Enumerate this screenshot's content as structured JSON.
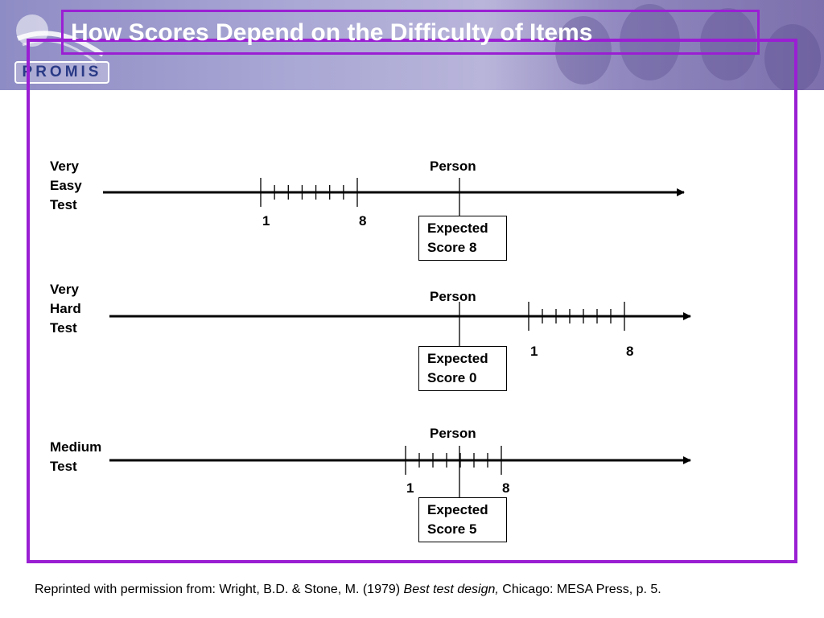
{
  "header": {
    "logo_text": "PROMIS",
    "title": "How Scores Depend on the Difficulty of Items"
  },
  "rows": [
    {
      "label": [
        "Very",
        "Easy",
        "Test"
      ],
      "person_label": "Person",
      "item_low": "1",
      "item_high": "8",
      "box": [
        "Expected",
        "Score 8"
      ]
    },
    {
      "label": [
        "Very",
        "Hard",
        "Test"
      ],
      "person_label": "Person",
      "item_low": "1",
      "item_high": "8",
      "box": [
        "Expected",
        "Score 0"
      ]
    },
    {
      "label": [
        "Medium",
        "Test"
      ],
      "person_label": "Person",
      "item_low": "1",
      "item_high": "8",
      "box": [
        "Expected",
        "Score 5"
      ]
    }
  ],
  "citation": {
    "prefix": "Reprinted with permission from:  Wright, B.D. & Stone, M. (1979) ",
    "title": "Best test design,",
    "suffix": " Chicago: MESA Press, p. 5."
  },
  "colors": {
    "frame": "#9a1fd3",
    "banner": "#a9a7d4",
    "logo_text": "#2a3a86"
  }
}
